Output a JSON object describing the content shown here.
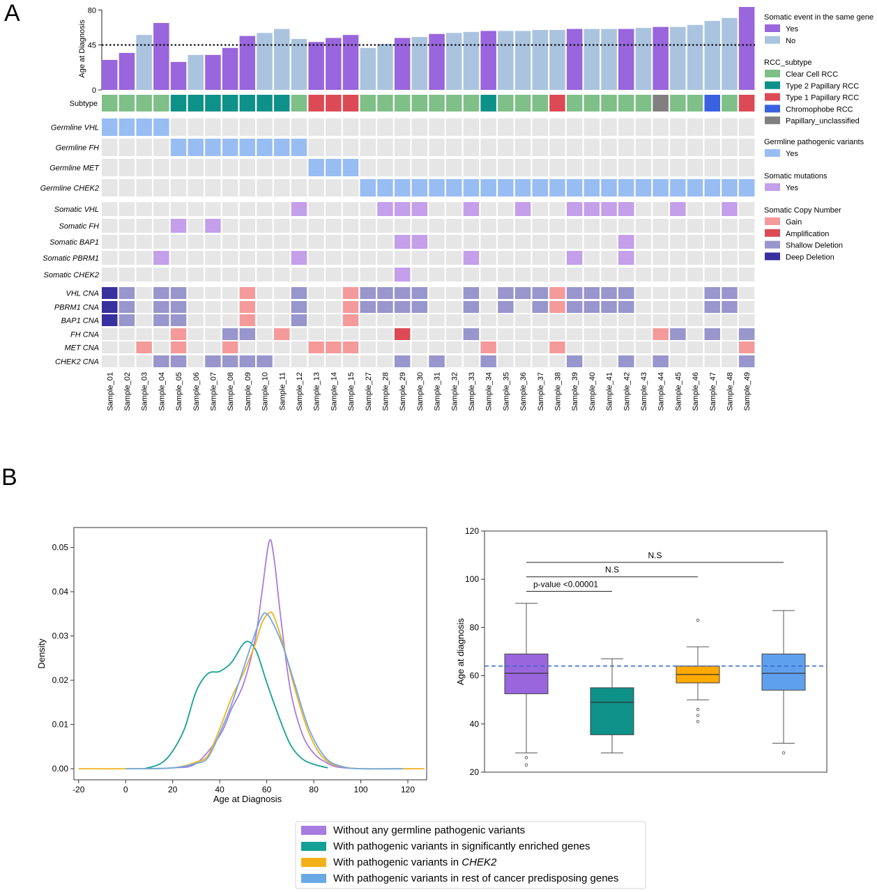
{
  "panel_a_letter": "A",
  "panel_b_letter": "B",
  "colors": {
    "yes_bar": "#9966dd",
    "no_bar": "#aac4e0",
    "clear_cell": "#7fbf88",
    "type2": "#0e9188",
    "type1": "#dc4b55",
    "chromophobe": "#3a62e0",
    "unclassified": "#808080",
    "germline": "#98bdf3",
    "somatic": "#c49fea",
    "gain": "#f59a9a",
    "amp": "#dc4b55",
    "shallow": "#9896cc",
    "deep": "#38309e",
    "empty": "#e6e6e6",
    "purple_line": "#a77be0",
    "teal_line": "#14a096",
    "orange_line": "#f4b019",
    "blue_line": "#69a9e4",
    "box_purple": "#9966dd",
    "box_teal": "#0e9188",
    "box_orange": "#ffaa00",
    "box_blue": "#5ea0ee",
    "dashed_ref": "#3366cc"
  },
  "chart_data": [
    {
      "type": "oncoprint",
      "samples": [
        "Sample_01",
        "Sample_02",
        "Sample_03",
        "Sample_04",
        "Sample_05",
        "Sample_06",
        "Sample_07",
        "Sample_08",
        "Sample_09",
        "Sample_10",
        "Sample_11",
        "Sample_12",
        "Sample_13",
        "Sample_14",
        "Sample_15",
        "Sample_27",
        "Sample_28",
        "Sample_29",
        "Sample_30",
        "Sample_31",
        "Sample_32",
        "Sample_33",
        "Sample_34",
        "Sample_35",
        "Sample_36",
        "Sample_37",
        "Sample_38",
        "Sample_39",
        "Sample_40",
        "Sample_41",
        "Sample_42",
        "Sample_43",
        "Sample_44",
        "Sample_45",
        "Sample_46",
        "Sample_47",
        "Sample_48",
        "Sample_49"
      ],
      "age_axis": {
        "ylabel": "Age at Diagnosis",
        "ticks": [
          0,
          45,
          80
        ],
        "ylim": [
          0,
          83
        ],
        "reference_line": 45
      },
      "ages": [
        30,
        37,
        55,
        67,
        28,
        35,
        35,
        42,
        54,
        57,
        61,
        51,
        48,
        52,
        55,
        42,
        46,
        52,
        53,
        56,
        57,
        58,
        59,
        59,
        59,
        60,
        60,
        61,
        61,
        61,
        61,
        62,
        63,
        63,
        65,
        69,
        72,
        83
      ],
      "somatic_event_same_gene": [
        "yes",
        "yes",
        "no",
        "yes",
        "yes",
        "no",
        "yes",
        "yes",
        "yes",
        "no",
        "no",
        "no",
        "yes",
        "yes",
        "yes",
        "no",
        "no",
        "yes",
        "no",
        "yes",
        "no",
        "no",
        "yes",
        "no",
        "no",
        "no",
        "no",
        "yes",
        "no",
        "no",
        "yes",
        "no",
        "yes",
        "no",
        "no",
        "no",
        "no",
        "yes"
      ],
      "subtype_row_label": "Subtype",
      "subtype": [
        "clear",
        "clear",
        "clear",
        "clear",
        "type2",
        "type2",
        "type2",
        "type2",
        "type2",
        "type2",
        "type2",
        "clear",
        "type1",
        "type1",
        "type1",
        "clear",
        "clear",
        "clear",
        "clear",
        "clear",
        "clear",
        "clear",
        "type2",
        "clear",
        "clear",
        "clear",
        "type1",
        "clear",
        "clear",
        "clear",
        "clear",
        "clear",
        "unclass",
        "clear",
        "clear",
        "chromo",
        "clear",
        "type1"
      ],
      "germline_rows": [
        {
          "label": "Germline VHL",
          "positive": [
            1,
            2,
            3,
            4
          ]
        },
        {
          "label": "Germline FH",
          "positive": [
            5,
            6,
            7,
            8,
            9,
            10,
            11,
            12
          ]
        },
        {
          "label": "Germline MET",
          "positive": [
            13,
            14,
            15
          ]
        },
        {
          "label": "Germline CHEK2",
          "positive": [
            16,
            17,
            18,
            19,
            20,
            21,
            22,
            23,
            24,
            25,
            26,
            27,
            28,
            29,
            30,
            31,
            32,
            33,
            34,
            35,
            36,
            37,
            38
          ]
        }
      ],
      "somatic_rows": [
        {
          "label": "Somatic VHL",
          "positive": [
            12,
            17,
            18,
            19,
            22,
            25,
            28,
            29,
            30,
            31,
            34,
            37
          ]
        },
        {
          "label": "Somatic FH",
          "positive": [
            5,
            7
          ]
        },
        {
          "label": "Somatic BAP1",
          "positive": [
            18,
            19,
            31
          ]
        },
        {
          "label": "Somatic PBRM1",
          "positive": [
            4,
            12,
            22,
            28,
            31
          ]
        },
        {
          "label": "Somatic CHEK2",
          "positive": [
            18
          ]
        }
      ],
      "cna_rows": [
        {
          "label": "VHL CNA",
          "cells": {
            "1": "deep",
            "2": "shallow",
            "4": "shallow",
            "5": "shallow",
            "9": "gain",
            "12": "shallow",
            "15": "gain",
            "16": "shallow",
            "17": "shallow",
            "18": "shallow",
            "19": "shallow",
            "22": "shallow",
            "24": "shallow",
            "25": "shallow",
            "26": "shallow",
            "27": "gain",
            "28": "shallow",
            "29": "shallow",
            "30": "shallow",
            "31": "shallow",
            "36": "shallow",
            "37": "shallow"
          }
        },
        {
          "label": "PBRM1 CNA",
          "cells": {
            "1": "deep",
            "2": "shallow",
            "4": "shallow",
            "5": "shallow",
            "9": "gain",
            "12": "shallow",
            "15": "gain",
            "16": "shallow",
            "17": "shallow",
            "18": "shallow",
            "19": "shallow",
            "22": "shallow",
            "24": "shallow",
            "26": "shallow",
            "27": "gain",
            "28": "shallow",
            "29": "shallow",
            "30": "shallow",
            "31": "shallow",
            "36": "shallow",
            "37": "shallow"
          }
        },
        {
          "label": "BAP1 CNA",
          "cells": {
            "1": "deep",
            "2": "shallow",
            "4": "shallow",
            "5": "shallow",
            "9": "gain",
            "12": "shallow",
            "15": "gain"
          }
        },
        {
          "label": "FH CNA",
          "cells": {
            "5": "gain",
            "8": "shallow",
            "9": "shallow",
            "11": "gain",
            "18": "amp",
            "22": "shallow",
            "33": "gain",
            "34": "shallow",
            "36": "shallow",
            "38": "shallow"
          }
        },
        {
          "label": "MET CNA",
          "cells": {
            "3": "gain",
            "5": "gain",
            "8": "gain",
            "13": "gain",
            "14": "gain",
            "15": "gain",
            "23": "gain",
            "27": "gain",
            "38": "gain"
          }
        },
        {
          "label": "CHEK2 CNA",
          "cells": {
            "4": "shallow",
            "5": "shallow",
            "7": "shallow",
            "8": "shallow",
            "9": "shallow",
            "10": "shallow",
            "18": "shallow",
            "20": "shallow",
            "23": "shallow",
            "28": "shallow",
            "31": "shallow",
            "33": "shallow",
            "38": "shallow"
          }
        }
      ],
      "legend": [
        {
          "title": "Somatic event in the same gene",
          "items": [
            {
              "label": "Yes",
              "color_key": "yes_bar"
            },
            {
              "label": "No",
              "color_key": "no_bar"
            }
          ]
        },
        {
          "title": "RCC_subtype",
          "items": [
            {
              "label": "Clear Cell RCC",
              "color_key": "clear_cell"
            },
            {
              "label": "Type 2 Papillary RCC",
              "color_key": "type2"
            },
            {
              "label": "Type 1 Papillary RCC",
              "color_key": "type1"
            },
            {
              "label": "Chromophobe RCC",
              "color_key": "chromophobe"
            },
            {
              "label": "Papillary_unclassified",
              "color_key": "unclassified"
            }
          ]
        },
        {
          "title": "Germline pathogenic variants",
          "items": [
            {
              "label": "Yes",
              "color_key": "germline"
            }
          ]
        },
        {
          "title": "Somatic mutations",
          "items": [
            {
              "label": "Yes",
              "color_key": "somatic"
            }
          ]
        },
        {
          "title": "Somatic Copy Number",
          "items": [
            {
              "label": "Gain",
              "color_key": "gain"
            },
            {
              "label": "Amplification",
              "color_key": "amp"
            },
            {
              "label": "Shallow Deletion",
              "color_key": "shallow"
            },
            {
              "label": "Deep Deletion",
              "color_key": "deep"
            }
          ]
        }
      ]
    },
    {
      "type": "line",
      "xlabel": "Age at Diagnosis",
      "ylabel": "Density",
      "xlim": [
        -22,
        128
      ],
      "ylim": [
        -0.0025,
        0.0545
      ],
      "xticks": [
        -20,
        0,
        20,
        40,
        60,
        80,
        100,
        120
      ],
      "yticks": [
        0.0,
        0.01,
        0.02,
        0.03,
        0.04,
        0.05
      ],
      "series": [
        {
          "color_key": "purple_line",
          "points": [
            [
              10,
              0
            ],
            [
              20,
              0.0002
            ],
            [
              30,
              0.0012
            ],
            [
              40,
              0.0075
            ],
            [
              45,
              0.0135
            ],
            [
              50,
              0.019
            ],
            [
              55,
              0.029
            ],
            [
              58,
              0.04
            ],
            [
              61,
              0.0513
            ],
            [
              63,
              0.048
            ],
            [
              66,
              0.034
            ],
            [
              70,
              0.018
            ],
            [
              75,
              0.008
            ],
            [
              80,
              0.0035
            ],
            [
              85,
              0.0015
            ],
            [
              90,
              0.0004
            ],
            [
              100,
              0
            ]
          ]
        },
        {
          "color_key": "teal_line",
          "points": [
            [
              8,
              0
            ],
            [
              15,
              0.0012
            ],
            [
              20,
              0.004
            ],
            [
              25,
              0.009
            ],
            [
              30,
              0.0175
            ],
            [
              35,
              0.0215
            ],
            [
              40,
              0.022
            ],
            [
              45,
              0.024
            ],
            [
              50,
              0.0282
            ],
            [
              53,
              0.0285
            ],
            [
              56,
              0.026
            ],
            [
              60,
              0.0195
            ],
            [
              65,
              0.012
            ],
            [
              70,
              0.0055
            ],
            [
              75,
              0.0023
            ],
            [
              80,
              0.001
            ],
            [
              86,
              0.0002
            ]
          ]
        },
        {
          "color_key": "orange_line",
          "points": [
            [
              -20,
              0
            ],
            [
              0,
              0
            ],
            [
              20,
              0.0002
            ],
            [
              30,
              0.0015
            ],
            [
              35,
              0.003
            ],
            [
              40,
              0.009
            ],
            [
              45,
              0.016
            ],
            [
              50,
              0.0215
            ],
            [
              55,
              0.028
            ],
            [
              58,
              0.033
            ],
            [
              61,
              0.0352
            ],
            [
              63,
              0.0345
            ],
            [
              67,
              0.028
            ],
            [
              72,
              0.018
            ],
            [
              78,
              0.008
            ],
            [
              85,
              0.002
            ],
            [
              95,
              0.0002
            ],
            [
              110,
              0
            ],
            [
              127,
              0
            ]
          ]
        },
        {
          "color_key": "blue_line",
          "points": [
            [
              0,
              0
            ],
            [
              20,
              0.0002
            ],
            [
              30,
              0.0012
            ],
            [
              35,
              0.0025
            ],
            [
              40,
              0.008
            ],
            [
              45,
              0.0145
            ],
            [
              50,
              0.0225
            ],
            [
              55,
              0.0305
            ],
            [
              58,
              0.0345
            ],
            [
              60,
              0.035
            ],
            [
              63,
              0.0325
            ],
            [
              67,
              0.0275
            ],
            [
              72,
              0.019
            ],
            [
              78,
              0.009
            ],
            [
              85,
              0.0025
            ],
            [
              92,
              0.0005
            ],
            [
              100,
              0
            ],
            [
              118,
              0
            ]
          ]
        }
      ]
    },
    {
      "type": "box",
      "ylabel": "Age at diagnosis",
      "ylim": [
        20,
        120
      ],
      "yticks": [
        20,
        40,
        60,
        80,
        100,
        120
      ],
      "reference_line": 64,
      "boxes": [
        {
          "color_key": "box_purple",
          "whisker_low": 28,
          "q1": 52.5,
          "median": 61,
          "q3": 69,
          "whisker_high": 90,
          "outliers": [
            26,
            23
          ]
        },
        {
          "color_key": "box_teal",
          "whisker_low": 28,
          "q1": 35.5,
          "median": 49,
          "q3": 55,
          "whisker_high": 67,
          "outliers": []
        },
        {
          "color_key": "box_orange",
          "whisker_low": 50,
          "q1": 57,
          "median": 60.5,
          "q3": 64,
          "whisker_high": 72,
          "outliers": [
            46,
            43.5,
            41,
            83
          ]
        },
        {
          "color_key": "box_blue",
          "whisker_low": 32,
          "q1": 54,
          "median": 61,
          "q3": 69,
          "whisker_high": 87,
          "outliers": [
            28
          ]
        }
      ],
      "annotations": [
        {
          "text": "p-value <0.00001",
          "from": 1,
          "to": 2,
          "y": 95
        },
        {
          "text": "N.S",
          "from": 1,
          "to": 3,
          "y": 101
        },
        {
          "text": "N.S",
          "from": 1,
          "to": 4,
          "y": 107
        }
      ]
    }
  ],
  "bottom_legend": [
    {
      "text": "Without any germline pathogenic variants",
      "color_key": "purple_line"
    },
    {
      "text": "With pathogenic variants in significantly enriched genes",
      "color_key": "teal_line"
    },
    {
      "text": "With pathogenic variants in ",
      "italic": "CHEK2",
      "color_key": "orange_line"
    },
    {
      "text": "With pathogenic variants in rest of cancer predisposing genes",
      "color_key": "blue_line"
    }
  ]
}
